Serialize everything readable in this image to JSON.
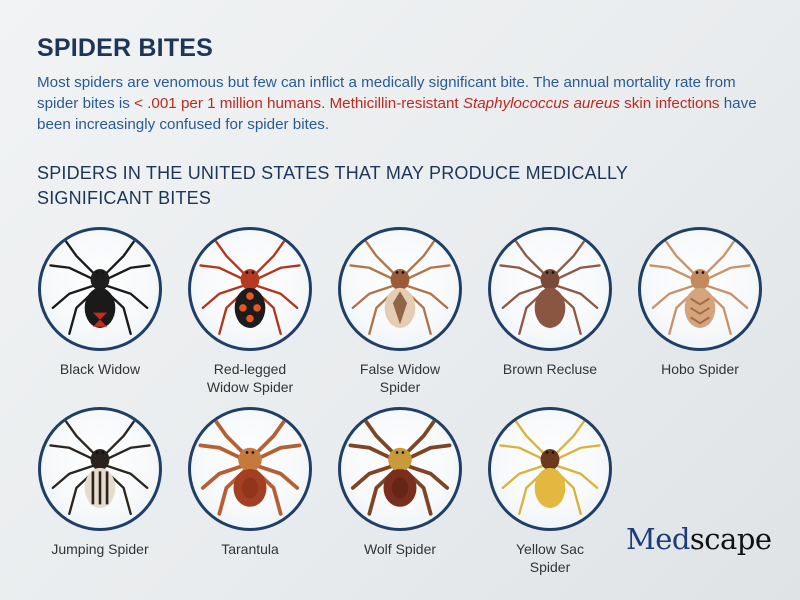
{
  "title": "SPIDER BITES",
  "intro": {
    "part1": "Most spiders are venomous but few can inflict a medically significant bite. The annual mortality rate from spider bites is ",
    "part2": "< .001 per 1 million humans. Methicillin-resistant ",
    "part3": "Staphylococcus aureus",
    "part4": " skin infections",
    "part5": " have been increasingly confused for spider bites."
  },
  "subtitle": "SPIDERS IN THE UNITED STATES THAT MAY PRODUCE MEDICALLY SIGNIFICANT BITES",
  "spiders": [
    {
      "label": "Black Widow",
      "icon": "black-widow-icon",
      "leg": "#1b1b1b",
      "ceph": "#1e1e1e",
      "abd": "#1a1a1a",
      "mark": "#c62d1f",
      "style": "hourglass"
    },
    {
      "label": "Red-legged Widow Spider",
      "icon": "red-legged-widow-icon",
      "leg": "#b2361e",
      "ceph": "#b53a1f",
      "abd": "#1c1c1c",
      "mark": "#e8561e",
      "style": "spots"
    },
    {
      "label": "False Widow Spider",
      "icon": "false-widow-icon",
      "leg": "#b0744a",
      "ceph": "#9a5c38",
      "abd": "#e4cdb2",
      "mark": "#7a4a2c",
      "style": "pattern"
    },
    {
      "label": "Brown Recluse",
      "icon": "brown-recluse-icon",
      "leg": "#8e5a45",
      "ceph": "#7a4a38",
      "abd": "#8a5641",
      "mark": "#5e3526",
      "style": "plain"
    },
    {
      "label": "Hobo Spider",
      "icon": "hobo-spider-icon",
      "leg": "#c9936a",
      "ceph": "#c38a5e",
      "abd": "#d6a47c",
      "mark": "#9e6a44",
      "style": "chevron"
    },
    {
      "label": "Jumping Spider",
      "icon": "jumping-spider-icon",
      "leg": "#2c2620",
      "ceph": "#2a231d",
      "abd": "#e7dccb",
      "mark": "#2a231d",
      "style": "stripes"
    },
    {
      "label": "Tarantula",
      "icon": "tarantula-icon",
      "leg": "#b45f34",
      "ceph": "#c47a3e",
      "abd": "#a33f22",
      "mark": "#7f2d18",
      "style": "hairy"
    },
    {
      "label": "Wolf Spider",
      "icon": "wolf-spider-icon",
      "leg": "#7d4524",
      "ceph": "#c89a3a",
      "abd": "#7a2e1e",
      "mark": "#4f1d12",
      "style": "hairy"
    },
    {
      "label": "Yellow Sac Spider",
      "icon": "yellow-sac-spider-icon",
      "leg": "#d8b43c",
      "ceph": "#6b3a1c",
      "abd": "#e2b83e",
      "mark": "#b88a22",
      "style": "plain"
    }
  ],
  "logo": {
    "part1": "Med",
    "part2": "scape"
  },
  "colors": {
    "heading": "#1d3557",
    "intro_text": "#2a5a94",
    "highlight_red": "#c0281f",
    "circle_border": "#1f3f66"
  }
}
